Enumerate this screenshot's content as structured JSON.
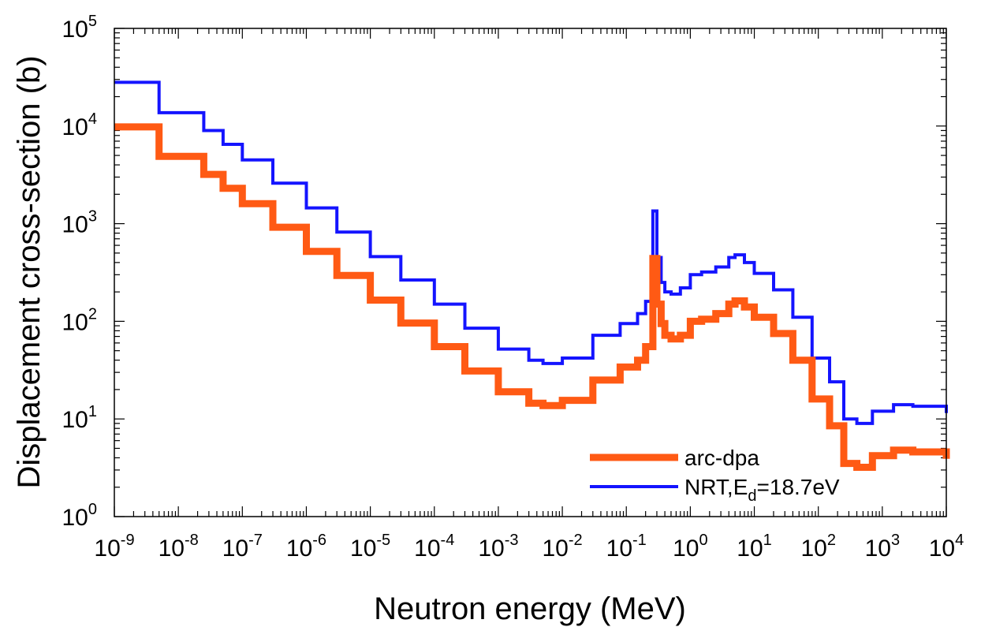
{
  "chart_data": {
    "type": "line",
    "step": true,
    "xscale": "log",
    "yscale": "log",
    "xlim": [
      1e-09,
      10000
    ],
    "ylim": [
      1,
      100000
    ],
    "xlabel": "Neutron energy (MeV)",
    "ylabel": "Displacement cross-section (b)",
    "grid": false,
    "legend_position": "bottom-right",
    "x_tick_labels": [
      {
        "base": "10",
        "exp": "-9"
      },
      {
        "base": "10",
        "exp": "-8"
      },
      {
        "base": "10",
        "exp": "-7"
      },
      {
        "base": "10",
        "exp": "-6"
      },
      {
        "base": "10",
        "exp": "-5"
      },
      {
        "base": "10",
        "exp": "-4"
      },
      {
        "base": "10",
        "exp": "-3"
      },
      {
        "base": "10",
        "exp": "-2"
      },
      {
        "base": "10",
        "exp": "-1"
      },
      {
        "base": "10",
        "exp": "0"
      },
      {
        "base": "10",
        "exp": "1"
      },
      {
        "base": "10",
        "exp": "2"
      },
      {
        "base": "10",
        "exp": "3"
      },
      {
        "base": "10",
        "exp": "4"
      }
    ],
    "y_tick_labels": [
      {
        "base": "10",
        "exp": "0"
      },
      {
        "base": "10",
        "exp": "1"
      },
      {
        "base": "10",
        "exp": "2"
      },
      {
        "base": "10",
        "exp": "3"
      },
      {
        "base": "10",
        "exp": "4"
      },
      {
        "base": "10",
        "exp": "5"
      }
    ],
    "series": [
      {
        "name": "arc-dpa",
        "color": "#ff5a14",
        "x": [
          1e-09,
          5e-09,
          2.5e-08,
          5e-08,
          1e-07,
          3e-07,
          1e-06,
          3e-06,
          1e-05,
          3e-05,
          0.0001,
          0.0003,
          0.001,
          0.003,
          0.005,
          0.01,
          0.03,
          0.08,
          0.15,
          0.2,
          0.26,
          0.3,
          0.35,
          0.4,
          0.5,
          0.7,
          1.0,
          1.5,
          2.5,
          4,
          5,
          7,
          10,
          20,
          40,
          80,
          150,
          250,
          400,
          700,
          1500,
          3000,
          10000
        ],
        "y": [
          9800,
          4900,
          3200,
          2300,
          1600,
          920,
          520,
          295,
          165,
          96,
          55,
          31,
          19,
          14.5,
          13.7,
          15.5,
          25,
          34,
          40,
          55,
          440,
          150,
          95,
          72,
          66,
          72,
          100,
          105,
          120,
          150,
          162,
          140,
          110,
          75,
          40,
          16,
          8.5,
          3.5,
          3.2,
          4.2,
          4.8,
          4.6,
          3.9
        ]
      },
      {
        "name": "NRT,Ed=18.7eV",
        "legend_main": "NRT,E",
        "legend_sub": "d",
        "legend_suffix": "=18.7eV",
        "color": "#1414ff",
        "x": [
          1e-09,
          5e-09,
          2.5e-08,
          5e-08,
          1e-07,
          3e-07,
          1e-06,
          3e-06,
          1e-05,
          3e-05,
          0.0001,
          0.0003,
          0.001,
          0.003,
          0.005,
          0.01,
          0.03,
          0.08,
          0.15,
          0.2,
          0.26,
          0.3,
          0.35,
          0.4,
          0.5,
          0.7,
          1.0,
          1.5,
          2.5,
          4,
          5,
          7,
          10,
          20,
          40,
          80,
          150,
          250,
          400,
          700,
          1500,
          3000,
          10000
        ],
        "y": [
          28000,
          13700,
          9000,
          6500,
          4500,
          2600,
          1450,
          820,
          460,
          265,
          150,
          85,
          52,
          40,
          37,
          42,
          72,
          95,
          120,
          160,
          1350,
          450,
          250,
          200,
          190,
          220,
          300,
          320,
          360,
          450,
          480,
          400,
          310,
          210,
          110,
          42,
          24,
          10,
          9,
          12,
          14,
          13.5,
          11.5
        ]
      }
    ]
  }
}
